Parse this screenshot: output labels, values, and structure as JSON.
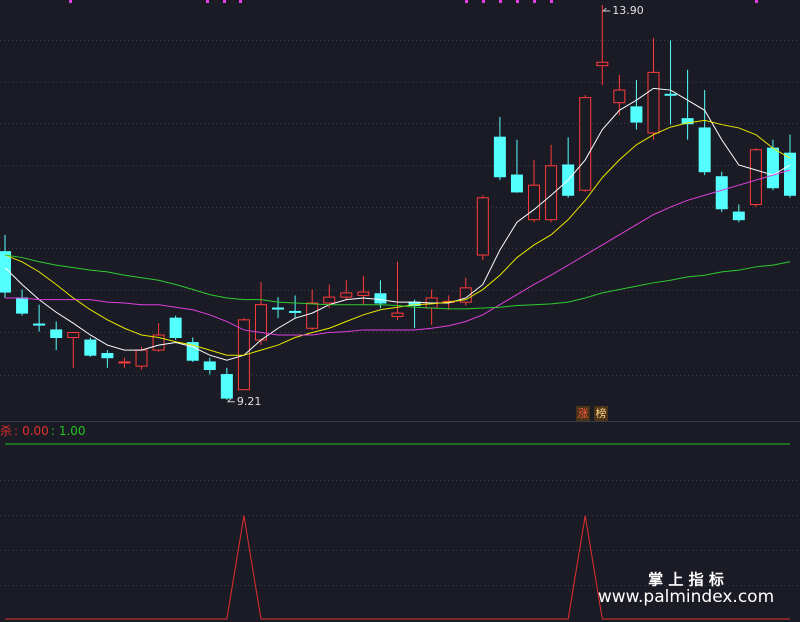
{
  "chart_data": [
    {
      "type": "candlestick",
      "open": [
        10.97,
        10.42,
        10.11,
        10.04,
        9.95,
        9.92,
        9.76,
        9.65,
        9.61,
        9.8,
        10.18,
        9.89,
        9.66,
        9.51,
        9.33,
        9.92,
        10.3,
        10.26,
        10.06,
        10.36,
        10.43,
        10.45,
        10.47,
        10.2,
        10.37,
        10.3,
        10.37,
        10.37,
        10.93,
        12.33,
        11.88,
        11.35,
        11.35,
        12.0,
        11.7,
        13.18,
        12.74,
        12.69,
        12.38,
        12.84,
        12.55,
        12.44,
        11.86,
        11.44,
        11.53,
        12.2,
        12.14
      ],
      "high": [
        11.17,
        10.52,
        10.34,
        10.14,
        10.01,
        9.95,
        9.8,
        9.71,
        9.84,
        10.12,
        10.21,
        9.95,
        9.71,
        9.59,
        10.18,
        10.61,
        10.43,
        10.45,
        10.52,
        10.58,
        10.63,
        10.68,
        10.63,
        10.85,
        10.4,
        10.52,
        10.45,
        10.66,
        11.64,
        12.57,
        12.3,
        12.06,
        12.24,
        12.33,
        12.83,
        13.9,
        13.07,
        13.01,
        13.51,
        13.48,
        13.13,
        12.89,
        11.92,
        11.53,
        12.2,
        12.3,
        12.36
      ],
      "low": [
        10.42,
        10.21,
        10.02,
        9.8,
        9.59,
        9.72,
        9.59,
        9.59,
        9.57,
        9.78,
        9.92,
        9.66,
        9.51,
        9.21,
        9.33,
        9.86,
        10.18,
        10.18,
        10.04,
        10.3,
        10.4,
        10.34,
        10.3,
        10.16,
        10.06,
        10.1,
        10.28,
        10.33,
        10.87,
        11.82,
        11.67,
        11.32,
        11.32,
        11.61,
        11.68,
        12.95,
        12.59,
        12.42,
        12.3,
        12.48,
        12.3,
        11.88,
        11.44,
        11.32,
        11.5,
        11.7,
        11.61
      ],
      "close": [
        10.49,
        10.24,
        10.1,
        9.95,
        10.01,
        9.74,
        9.71,
        9.66,
        9.8,
        9.98,
        9.95,
        9.68,
        9.57,
        9.23,
        10.16,
        10.34,
        10.29,
        10.25,
        10.36,
        10.43,
        10.48,
        10.49,
        10.36,
        10.24,
        10.33,
        10.42,
        10.38,
        10.54,
        11.61,
        11.86,
        11.68,
        11.76,
        11.99,
        11.64,
        12.8,
        13.22,
        12.89,
        12.51,
        13.1,
        12.83,
        12.49,
        11.92,
        11.48,
        11.35,
        12.18,
        11.73,
        11.64
      ],
      "up_color": "#ff3b3b",
      "down_color": "#54ffff",
      "overlays": [
        {
          "color": "#ffffff",
          "values": [
            10.78,
            10.58,
            10.4,
            10.25,
            10.12,
            9.98,
            9.86,
            9.8,
            9.8,
            9.86,
            9.89,
            9.84,
            9.74,
            9.68,
            9.74,
            9.92,
            10.06,
            10.18,
            10.24,
            10.34,
            10.4,
            10.42,
            10.4,
            10.37,
            10.37,
            10.36,
            10.36,
            10.42,
            10.58,
            10.99,
            11.32,
            11.47,
            11.64,
            11.82,
            12.06,
            12.42,
            12.65,
            12.77,
            12.91,
            12.89,
            12.77,
            12.65,
            12.3,
            12.0,
            11.94,
            11.88,
            12.0
          ]
        },
        {
          "color": "#e8e800",
          "values": [
            10.93,
            10.85,
            10.73,
            10.58,
            10.42,
            10.28,
            10.16,
            10.06,
            9.98,
            9.95,
            9.9,
            9.86,
            9.8,
            9.74,
            9.74,
            9.8,
            9.86,
            9.95,
            10.01,
            10.06,
            10.14,
            10.22,
            10.28,
            10.31,
            10.34,
            10.35,
            10.37,
            10.4,
            10.52,
            10.69,
            10.9,
            11.05,
            11.17,
            11.35,
            11.58,
            11.85,
            12.06,
            12.24,
            12.36,
            12.45,
            12.5,
            12.53,
            12.48,
            12.44,
            12.36,
            12.2,
            12.08
          ]
        },
        {
          "color": "#e040e0",
          "values": [
            10.42,
            10.42,
            10.4,
            10.4,
            10.4,
            10.4,
            10.37,
            10.36,
            10.34,
            10.34,
            10.31,
            10.28,
            10.22,
            10.14,
            10.04,
            10.01,
            9.98,
            9.98,
            9.98,
            10.01,
            10.02,
            10.04,
            10.04,
            10.04,
            10.04,
            10.06,
            10.09,
            10.14,
            10.22,
            10.34,
            10.46,
            10.58,
            10.69,
            10.81,
            10.93,
            11.05,
            11.17,
            11.29,
            11.41,
            11.5,
            11.58,
            11.64,
            11.7,
            11.76,
            11.82,
            11.88,
            11.94
          ]
        },
        {
          "color": "#2fcc2f",
          "values": [
            10.93,
            10.9,
            10.85,
            10.81,
            10.78,
            10.75,
            10.73,
            10.69,
            10.66,
            10.63,
            10.58,
            10.52,
            10.46,
            10.42,
            10.4,
            10.4,
            10.37,
            10.36,
            10.35,
            10.34,
            10.34,
            10.34,
            10.34,
            10.33,
            10.31,
            10.3,
            10.29,
            10.29,
            10.3,
            10.31,
            10.33,
            10.34,
            10.35,
            10.37,
            10.42,
            10.48,
            10.52,
            10.56,
            10.6,
            10.63,
            10.67,
            10.69,
            10.73,
            10.75,
            10.79,
            10.81,
            10.85
          ]
        }
      ],
      "ylim": [
        8.97,
        13.96
      ],
      "annotations": [
        {
          "value": 13.9,
          "label": "13.90"
        },
        {
          "value": 9.21,
          "label": "9.21"
        }
      ],
      "badges": [
        "涨",
        "榜"
      ]
    },
    {
      "type": "line",
      "separator": ":",
      "series": [
        {
          "name": "杀",
          "color": "#e0302f",
          "values": [
            0,
            0,
            0,
            0,
            0,
            0,
            0,
            0,
            0,
            0,
            0,
            0,
            0,
            0,
            0.59,
            0,
            0,
            0,
            0,
            0,
            0,
            0,
            0,
            0,
            0,
            0,
            0,
            0,
            0,
            0,
            0,
            0,
            0,
            0,
            0.59,
            0,
            0,
            0,
            0,
            0,
            0,
            0,
            0,
            0,
            0,
            0,
            0
          ],
          "last_value_label": "0.00"
        },
        {
          "color": "#22c422",
          "values": [
            1,
            1,
            1,
            1,
            1,
            1,
            1,
            1,
            1,
            1,
            1,
            1,
            1,
            1,
            1,
            1,
            1,
            1,
            1,
            1,
            1,
            1,
            1,
            1,
            1,
            1,
            1,
            1,
            1,
            1,
            1,
            1,
            1,
            1,
            1,
            1,
            1,
            1,
            1,
            1,
            1,
            1,
            1,
            1,
            1,
            1,
            1
          ],
          "last_value_label": "1.00"
        }
      ],
      "ylim": [
        0,
        1
      ]
    }
  ],
  "watermark": {
    "title": "掌 上 指 标",
    "url": "www.palmindex.com"
  }
}
